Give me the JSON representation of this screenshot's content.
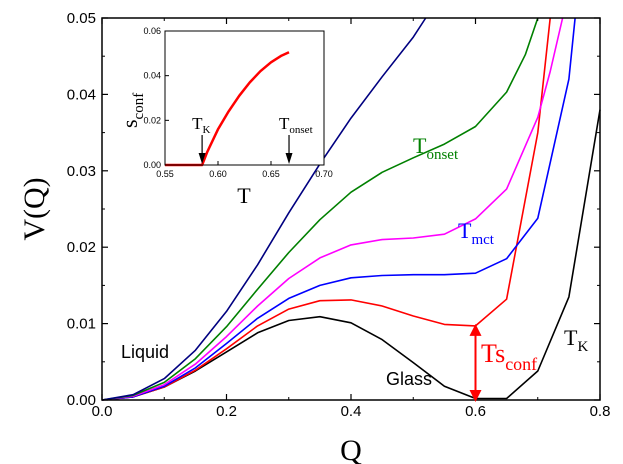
{
  "chart_data": [
    {
      "type": "line",
      "xlabel": "Q",
      "ylabel": "V(Q)",
      "xlim": [
        0,
        0.8
      ],
      "ylim": [
        0,
        0.05
      ],
      "xticks": [
        "0.0",
        "0.2",
        "0.4",
        "0.6",
        "0.8"
      ],
      "yticks": [
        "0.00",
        "0.01",
        "0.02",
        "0.03",
        "0.04",
        "0.05"
      ],
      "grid": false,
      "series": [
        {
          "color": "#000000",
          "x": [
            0,
            0.05,
            0.1,
            0.15,
            0.2,
            0.25,
            0.3,
            0.35,
            0.4,
            0.45,
            0.5,
            0.55,
            0.6,
            0.65,
            0.7,
            0.75,
            0.8
          ],
          "y": [
            0,
            0.0004,
            0.0017,
            0.0038,
            0.0063,
            0.0088,
            0.0104,
            0.0109,
            0.0101,
            0.0079,
            0.0049,
            0.0018,
            0.0002,
            0.0002,
            0.0038,
            0.0135,
            0.038
          ]
        },
        {
          "color": "#ff0000",
          "x": [
            0,
            0.05,
            0.1,
            0.15,
            0.2,
            0.25,
            0.3,
            0.35,
            0.4,
            0.45,
            0.5,
            0.55,
            0.6,
            0.65,
            0.7,
            0.72
          ],
          "y": [
            0,
            0.0004,
            0.0017,
            0.0039,
            0.0067,
            0.0097,
            0.0119,
            0.013,
            0.0131,
            0.0123,
            0.011,
            0.0099,
            0.0097,
            0.0132,
            0.035,
            0.05
          ]
        },
        {
          "color": "#0000ff",
          "x": [
            0,
            0.05,
            0.1,
            0.15,
            0.2,
            0.25,
            0.3,
            0.35,
            0.4,
            0.45,
            0.5,
            0.55,
            0.6,
            0.65,
            0.7,
            0.75,
            0.76
          ],
          "y": [
            0,
            0.0004,
            0.0018,
            0.0042,
            0.0074,
            0.0107,
            0.0133,
            0.015,
            0.016,
            0.0163,
            0.0164,
            0.0164,
            0.0166,
            0.0185,
            0.0238,
            0.042,
            0.05
          ]
        },
        {
          "color": "#ff00ff",
          "x": [
            0,
            0.05,
            0.1,
            0.15,
            0.2,
            0.25,
            0.3,
            0.35,
            0.4,
            0.45,
            0.5,
            0.55,
            0.6,
            0.65,
            0.7,
            0.72,
            0.74
          ],
          "y": [
            0,
            0.0005,
            0.002,
            0.0047,
            0.0083,
            0.0123,
            0.0159,
            0.0186,
            0.0203,
            0.021,
            0.0212,
            0.0217,
            0.0237,
            0.0276,
            0.037,
            0.043,
            0.05
          ]
        },
        {
          "color": "#008000",
          "x": [
            0,
            0.05,
            0.1,
            0.15,
            0.2,
            0.25,
            0.3,
            0.35,
            0.4,
            0.45,
            0.5,
            0.55,
            0.6,
            0.65,
            0.68,
            0.7
          ],
          "y": [
            0,
            0.0006,
            0.0023,
            0.0054,
            0.0096,
            0.0145,
            0.0193,
            0.0236,
            0.0272,
            0.0298,
            0.0317,
            0.0335,
            0.0358,
            0.0403,
            0.0452,
            0.05
          ]
        },
        {
          "color": "#000080",
          "x": [
            0,
            0.05,
            0.1,
            0.15,
            0.2,
            0.25,
            0.3,
            0.35,
            0.4,
            0.45,
            0.5,
            0.52
          ],
          "y": [
            0,
            0.0007,
            0.0028,
            0.0065,
            0.0116,
            0.0177,
            0.0245,
            0.0309,
            0.0369,
            0.0423,
            0.0475,
            0.05
          ]
        }
      ],
      "annotations": {
        "liquid": "Liquid",
        "glass": "Glass",
        "t_onset_base": "T",
        "t_onset_sub": "onset",
        "t_mct_base": "T",
        "t_mct_sub": "mct",
        "t_k_base": "T",
        "t_k_sub": "K",
        "ts_base": "Ts",
        "ts_sub": "conf"
      },
      "arrow": {
        "x": 0.6,
        "y_from": 0.0,
        "y_to": 0.0097,
        "color": "#ff0000"
      }
    },
    {
      "type": "line",
      "xlabel": "T",
      "ylabel_base": "s",
      "ylabel_sub": "conf",
      "xlim": [
        0.55,
        0.7
      ],
      "ylim": [
        0,
        0.06
      ],
      "xticks": [
        "0.55",
        "0.60",
        "0.65",
        "0.70"
      ],
      "yticks": [
        "0.00",
        "0.02",
        "0.04",
        "0.06"
      ],
      "series": [
        {
          "color": "#ff0000",
          "x": [
            0.55,
            0.585,
            0.59,
            0.6,
            0.61,
            0.62,
            0.63,
            0.64,
            0.65,
            0.66,
            0.667
          ],
          "y": [
            0,
            0,
            0.006,
            0.016,
            0.024,
            0.031,
            0.037,
            0.042,
            0.046,
            0.049,
            0.0505
          ]
        }
      ],
      "markers": [
        {
          "label_base": "T",
          "label_sub": "K",
          "x": 0.585
        },
        {
          "label_base": "T",
          "label_sub": "onset",
          "x": 0.667
        }
      ]
    }
  ]
}
